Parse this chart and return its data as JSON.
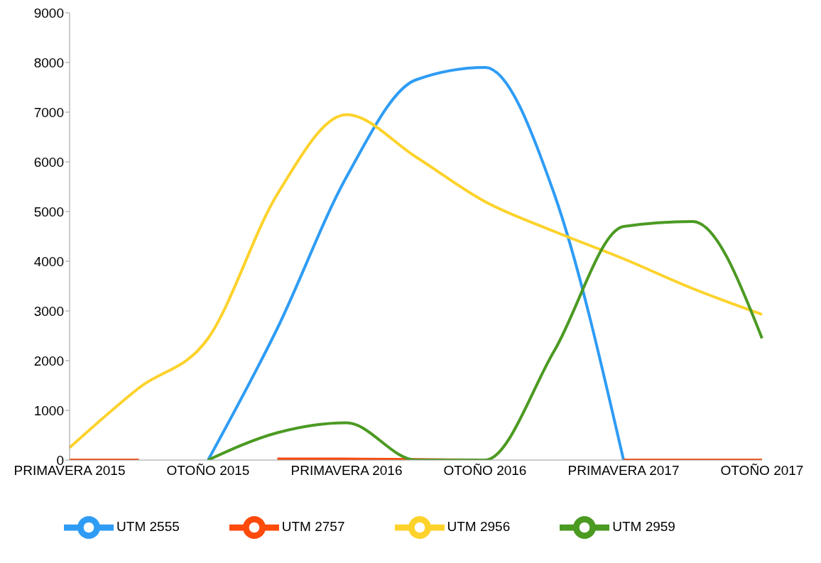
{
  "chart_data": {
    "type": "line",
    "categories": [
      "PRIMAVERA 2015",
      null,
      "OTOÑO 2015",
      null,
      "PRIMAVERA 2016",
      null,
      "OTOÑO 2016",
      null,
      "PRIMAVERA 2017",
      null,
      "OTOÑO 2017"
    ],
    "series": [
      {
        "name": "UTM 2555",
        "color": "#2e9cf5",
        "values": [
          null,
          null,
          0,
          2650,
          5700,
          7650,
          7900,
          5350,
          0,
          null,
          null
        ]
      },
      {
        "name": "UTM 2757",
        "color": "#fe4a0b",
        "values": [
          0,
          0,
          null,
          20,
          20,
          10,
          0,
          null,
          0,
          0,
          0
        ]
      },
      {
        "name": "UTM 2956",
        "color": "#fdd22b",
        "values": [
          250,
          1450,
          2450,
          5350,
          6950,
          6100,
          5200,
          4600,
          4050,
          3450,
          2930
        ]
      },
      {
        "name": "UTM 2959",
        "color": "#4b9a22",
        "values": [
          null,
          null,
          0,
          550,
          750,
          0,
          0,
          2200,
          4700,
          4800,
          2450
        ]
      }
    ],
    "ylim": [
      0,
      9000
    ],
    "yticks": [
      0,
      1000,
      2000,
      3000,
      4000,
      5000,
      6000,
      7000,
      8000,
      9000
    ],
    "grid": false,
    "legend": "bottom",
    "marker": "none",
    "line_style": "solid"
  }
}
